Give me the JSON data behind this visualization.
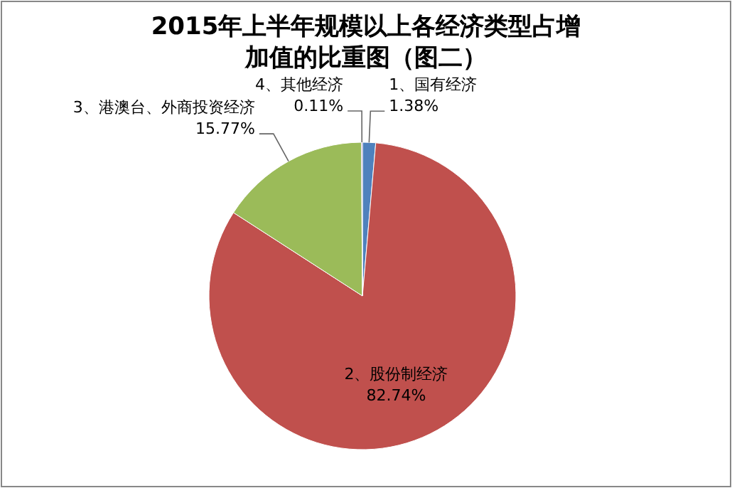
{
  "chart_data": {
    "type": "pie",
    "title": "2015年上半年规模以上各经济类型占增加值的比重图（图二）",
    "categories": [
      "1、国有经济",
      "2、股份制经济",
      "3、港澳台、外商投资经济",
      "4、其他经济"
    ],
    "values": [
      1.38,
      82.74,
      15.77,
      0.11
    ],
    "value_labels": [
      "1.38%",
      "82.74%",
      "15.77%",
      "0.11%"
    ],
    "colors": [
      "#4f81bd",
      "#c0504d",
      "#9bbb59",
      "#8064a2"
    ]
  }
}
